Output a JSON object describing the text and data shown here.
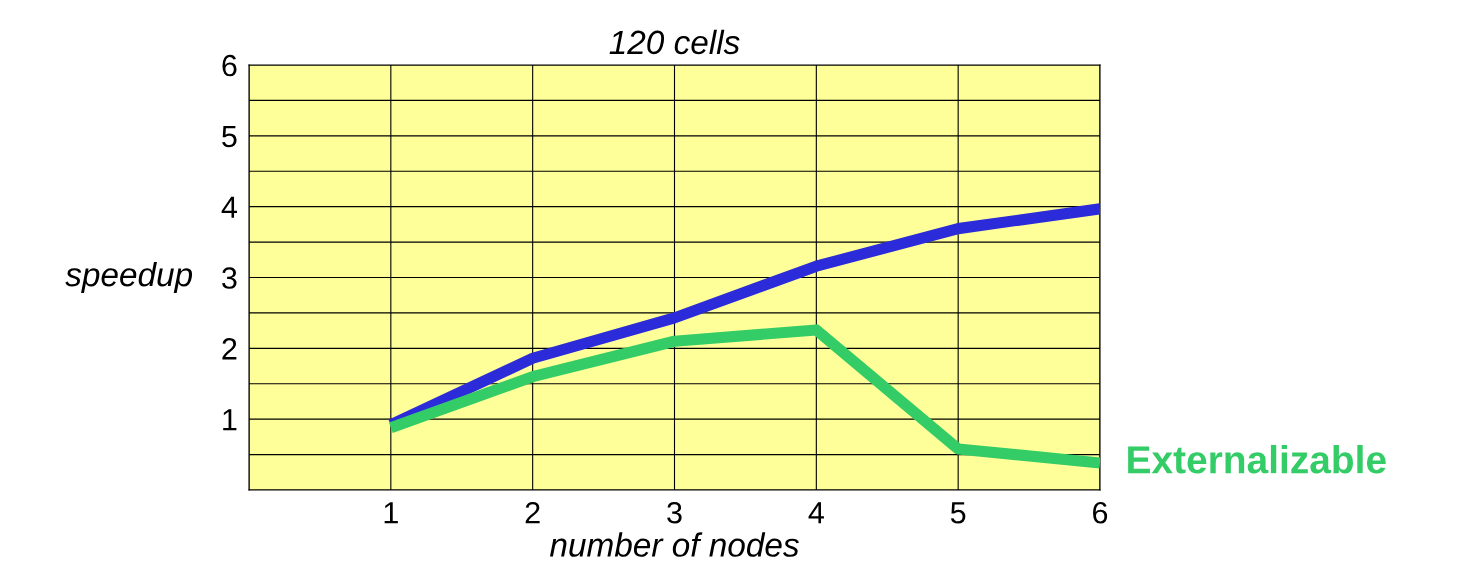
{
  "chart_data": {
    "type": "line",
    "title": "120 cells",
    "xlabel": "number of nodes",
    "ylabel": "speedup",
    "x": [
      1,
      2,
      3,
      4,
      5,
      6
    ],
    "series": [
      {
        "color": "#2b2bd9",
        "values": [
          0.92,
          1.86,
          2.43,
          3.16,
          3.69,
          3.97
        ]
      },
      {
        "name": "Externalizable",
        "color": "#33cc66",
        "values": [
          0.88,
          1.6,
          2.1,
          2.26,
          0.58,
          0.38
        ]
      }
    ],
    "xlim": [
      0,
      6
    ],
    "xticks": [
      {
        "value": 0,
        "label": null
      },
      1,
      2,
      3,
      4,
      5,
      6
    ],
    "ylim": [
      0,
      6
    ],
    "yticks": [
      {
        "value": 0,
        "label": null
      },
      {
        "value": 0.5,
        "label": null
      },
      1,
      {
        "value": 1.5,
        "label": null
      },
      2,
      {
        "value": 2.5,
        "label": null
      },
      3,
      {
        "value": 3.5,
        "label": null
      },
      4,
      {
        "value": 4.5,
        "label": null
      },
      5,
      {
        "value": 5.5,
        "label": null
      },
      6
    ],
    "grid": true,
    "marker": "none",
    "line_style": "solid"
  }
}
